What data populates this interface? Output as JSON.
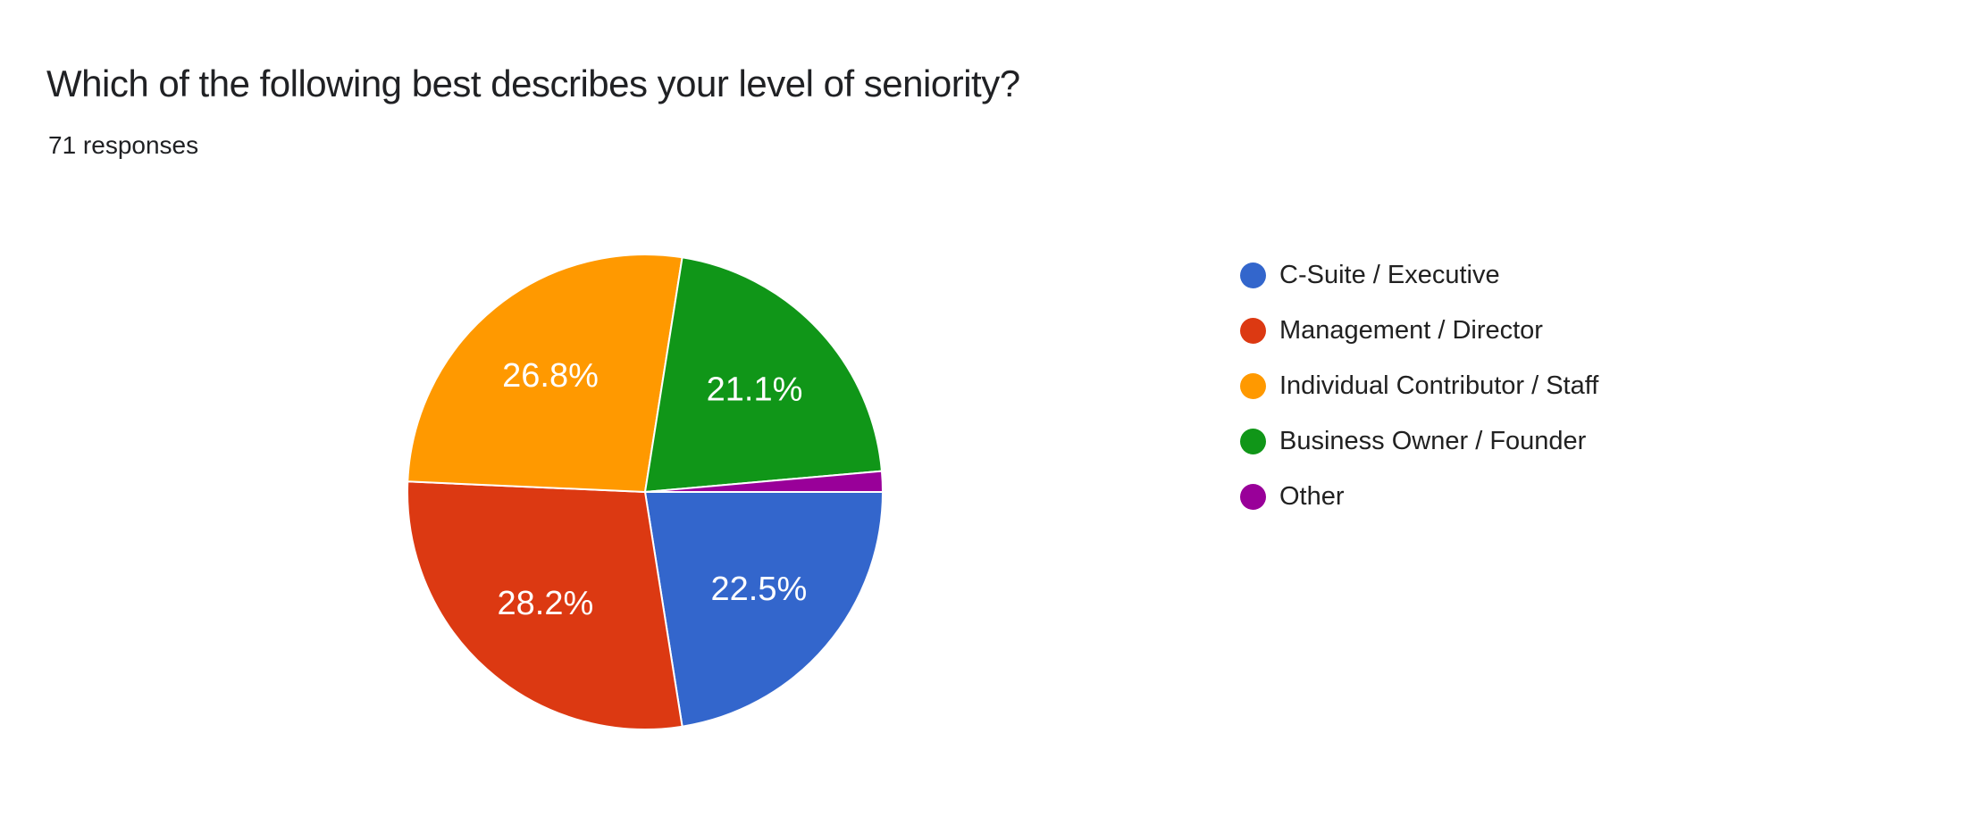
{
  "header": {
    "title": "Which of the following best describes your level of seniority?",
    "subtitle": "71 responses"
  },
  "chart_data": {
    "type": "pie",
    "title": "Which of the following best describes your level of seniority?",
    "subtitle": "71 responses",
    "responses_count": 71,
    "legend_position": "right",
    "start_angle_deg_clockwise_from_top": 90,
    "label_format": "percent",
    "min_percent_for_label": 3,
    "slice_gap_color": "#ffffff",
    "series": [
      {
        "label": "C-Suite / Executive",
        "percent": 22.5,
        "color": "#3366cc"
      },
      {
        "label": "Management / Director",
        "percent": 28.2,
        "color": "#dc3912"
      },
      {
        "label": "Individual Contributor / Staff",
        "percent": 26.8,
        "color": "#ff9900"
      },
      {
        "label": "Business Owner / Founder",
        "percent": 21.1,
        "color": "#109618"
      },
      {
        "label": "Other",
        "percent": 1.4,
        "color": "#990099"
      }
    ]
  }
}
